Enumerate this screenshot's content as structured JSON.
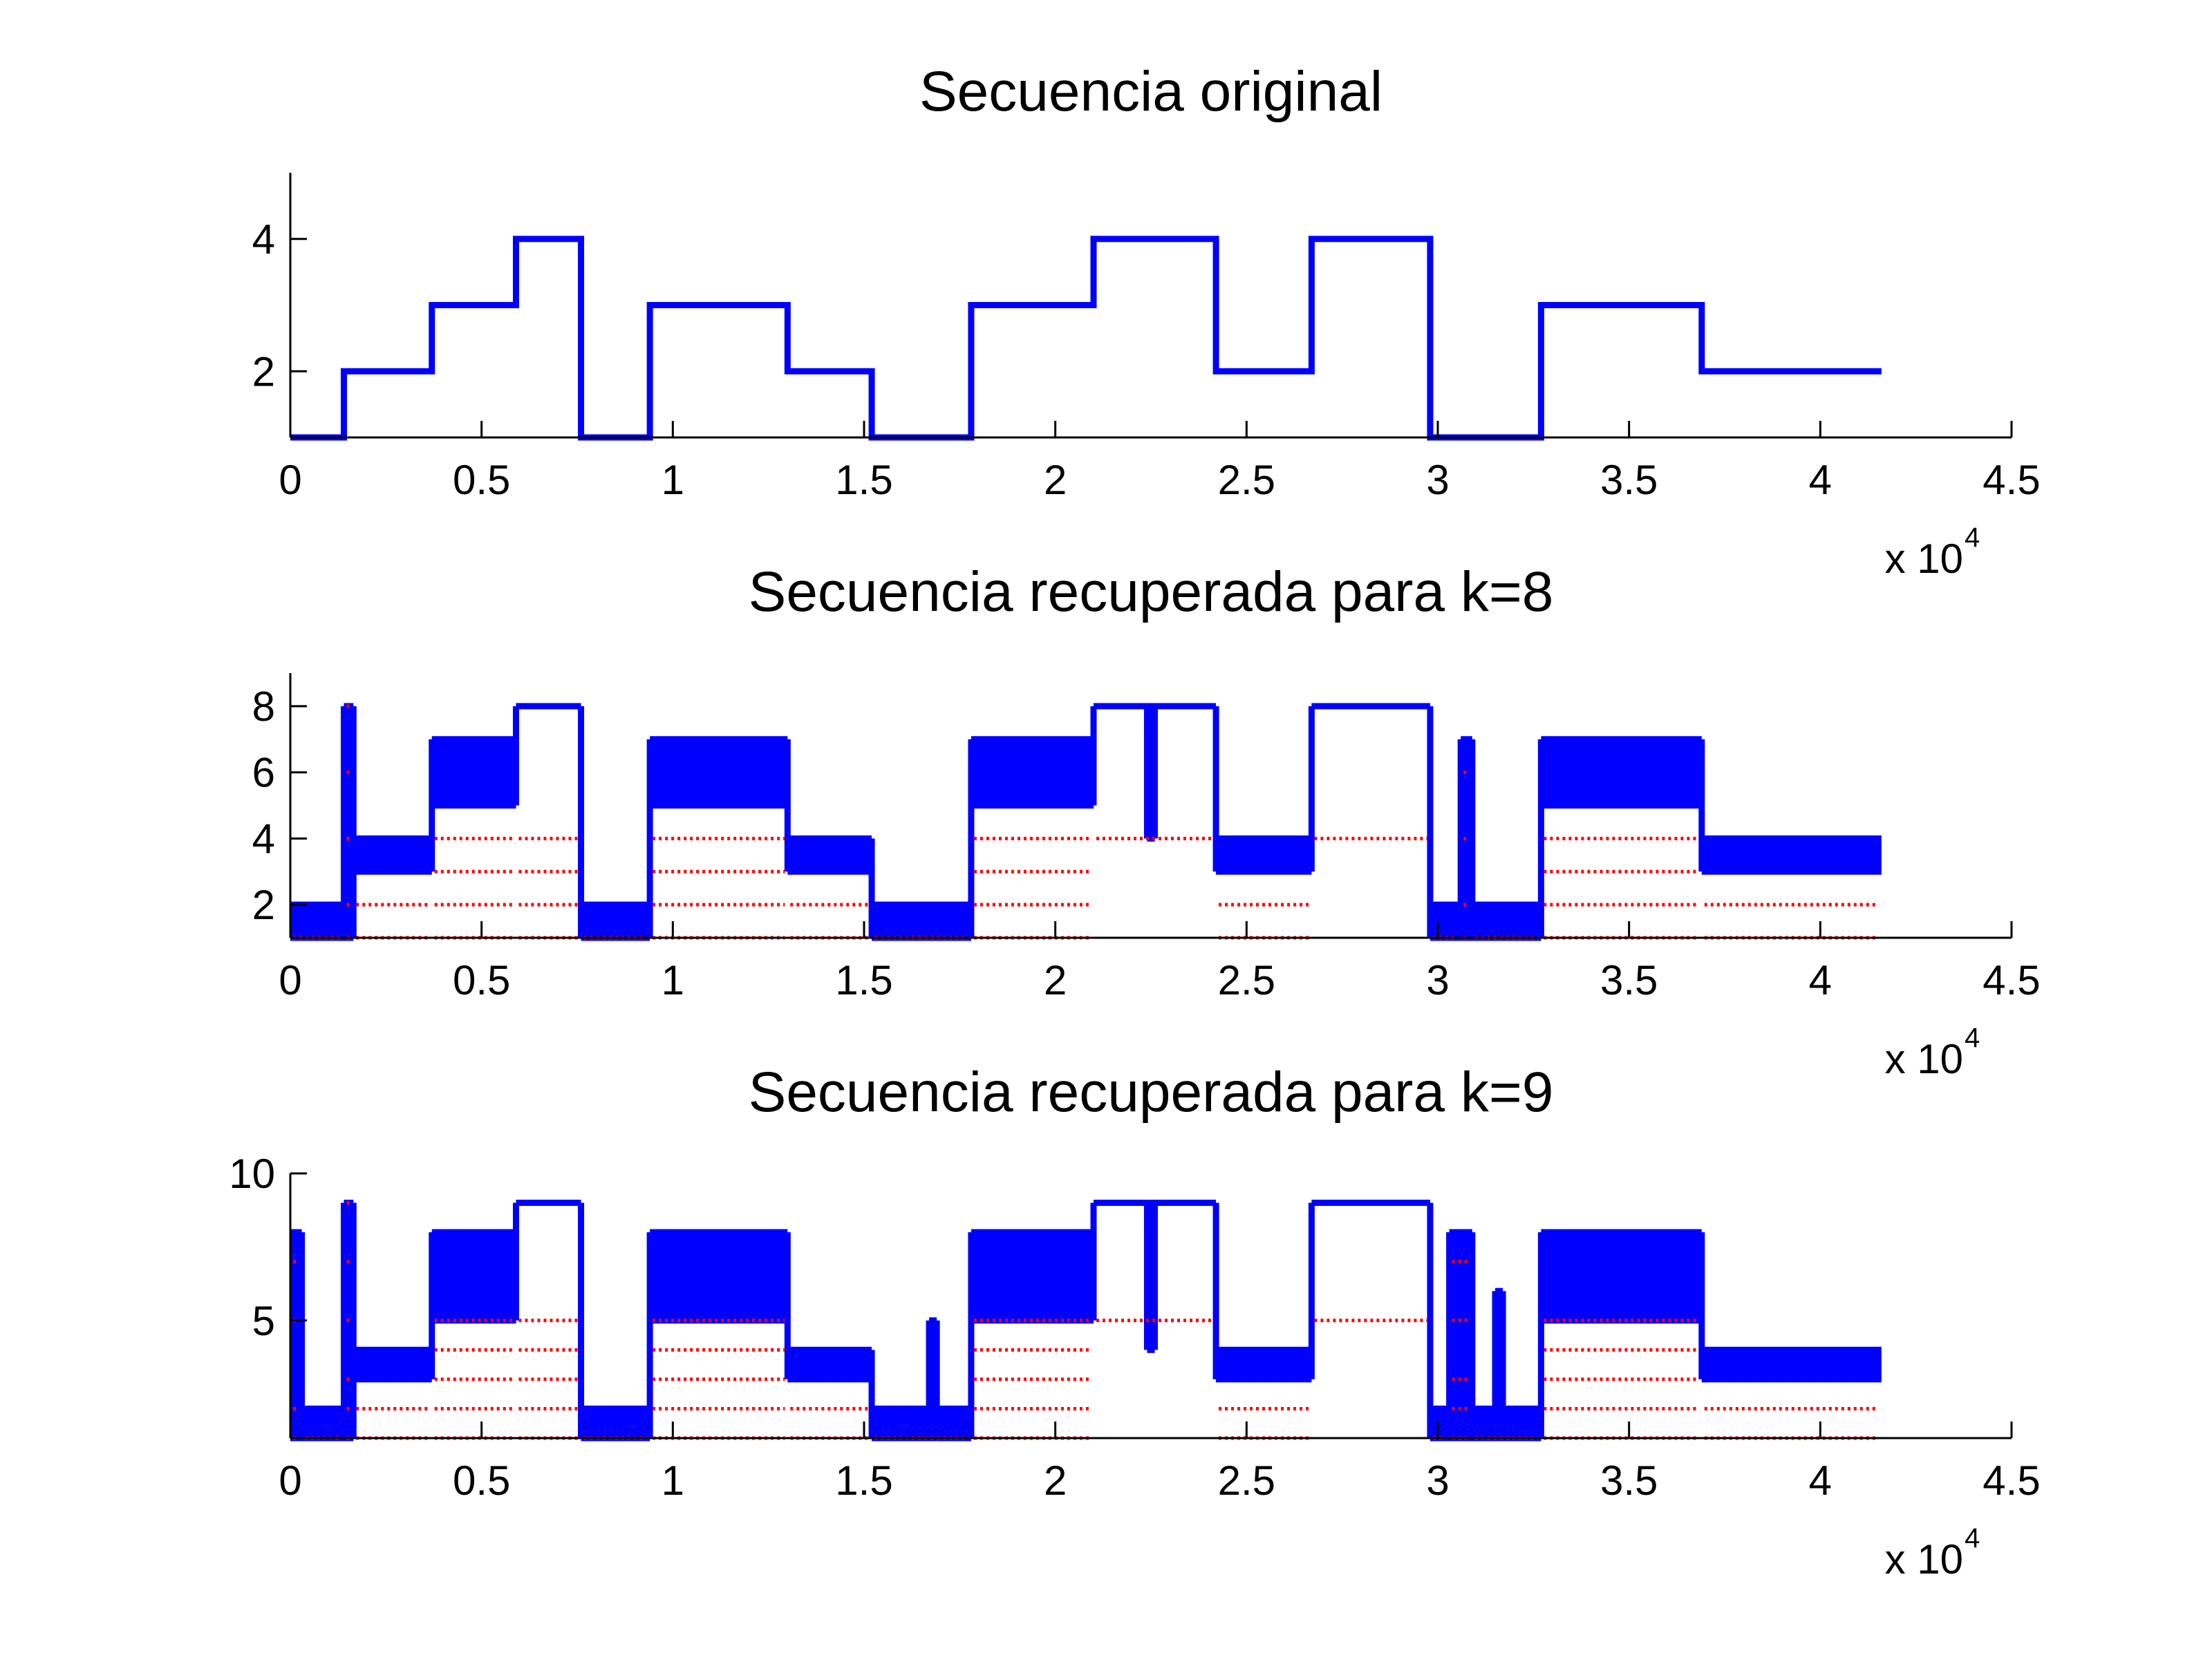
{
  "chart_data": [
    {
      "type": "line",
      "title": "Secuencia original",
      "xlabel": "",
      "ylabel": "",
      "xlim": [
        0,
        45000
      ],
      "ylim": [
        1,
        5
      ],
      "x_ticks": [
        "0",
        "0.5",
        "1",
        "1.5",
        "2",
        "2.5",
        "3",
        "3.5",
        "4",
        "4.5"
      ],
      "x_tick_values": [
        0,
        5000,
        10000,
        15000,
        20000,
        25000,
        30000,
        35000,
        40000,
        45000
      ],
      "y_ticks": [
        "2",
        "4"
      ],
      "y_tick_values": [
        2,
        4
      ],
      "x_multiplier": {
        "base": "x 10",
        "exponent": "4"
      },
      "grid": false,
      "series": [
        {
          "color": "#0000ff",
          "style": "step",
          "x": [
            0,
            1400,
            3700,
            5900,
            7600,
            9400,
            13000,
            15200,
            17800,
            21000,
            24200,
            26700,
            29800,
            32700,
            36900,
            41600
          ],
          "values": [
            1,
            2,
            3,
            4,
            1,
            3,
            2,
            1,
            3,
            4,
            2,
            4,
            1,
            3,
            2,
            2
          ]
        }
      ]
    },
    {
      "type": "line",
      "title": "Secuencia recuperada para k=8",
      "xlabel": "",
      "ylabel": "",
      "xlim": [
        0,
        45000
      ],
      "ylim": [
        1,
        9
      ],
      "x_ticks": [
        "0",
        "0.5",
        "1",
        "1.5",
        "2",
        "2.5",
        "3",
        "3.5",
        "4",
        "4.5"
      ],
      "x_tick_values": [
        0,
        5000,
        10000,
        15000,
        20000,
        25000,
        30000,
        35000,
        40000,
        45000
      ],
      "y_ticks": [
        "2",
        "4",
        "6",
        "8"
      ],
      "y_tick_values": [
        2,
        4,
        6,
        8
      ],
      "x_multiplier": {
        "base": "x 10",
        "exponent": "4"
      },
      "grid": false,
      "series": [
        {
          "color": "#0000ff",
          "style": "band",
          "segments": [
            {
              "x0": 0,
              "x1": 1400,
              "low": 1,
              "high": 2
            },
            {
              "x0": 1400,
              "x1": 1650,
              "low": 1,
              "high": 8
            },
            {
              "x0": 1650,
              "x1": 3700,
              "low": 3,
              "high": 4
            },
            {
              "x0": 3700,
              "x1": 5900,
              "low": 5,
              "high": 7
            },
            {
              "x0": 5900,
              "x1": 7600,
              "low": 8,
              "high": 8
            },
            {
              "x0": 7600,
              "x1": 9400,
              "low": 1,
              "high": 2
            },
            {
              "x0": 9400,
              "x1": 13000,
              "low": 5,
              "high": 7
            },
            {
              "x0": 13000,
              "x1": 15200,
              "low": 3,
              "high": 4
            },
            {
              "x0": 15200,
              "x1": 17800,
              "low": 1,
              "high": 2
            },
            {
              "x0": 17800,
              "x1": 21000,
              "low": 5,
              "high": 7
            },
            {
              "x0": 21000,
              "x1": 22400,
              "low": 8,
              "high": 8
            },
            {
              "x0": 22400,
              "x1": 22600,
              "low": 4,
              "high": 8
            },
            {
              "x0": 22600,
              "x1": 24200,
              "low": 8,
              "high": 8
            },
            {
              "x0": 24200,
              "x1": 26700,
              "low": 3,
              "high": 4
            },
            {
              "x0": 26700,
              "x1": 29800,
              "low": 8,
              "high": 8
            },
            {
              "x0": 29800,
              "x1": 30600,
              "low": 1,
              "high": 2
            },
            {
              "x0": 30600,
              "x1": 30900,
              "low": 1,
              "high": 7
            },
            {
              "x0": 30900,
              "x1": 32700,
              "low": 1,
              "high": 2
            },
            {
              "x0": 32700,
              "x1": 36900,
              "low": 5,
              "high": 7
            },
            {
              "x0": 36900,
              "x1": 41600,
              "low": 3,
              "high": 4
            }
          ]
        },
        {
          "color": "#ff0000",
          "style": "dots",
          "segments": [
            {
              "x0": 0,
              "x1": 1400,
              "levels": [
                1
              ]
            },
            {
              "x0": 1400,
              "x1": 1650,
              "levels": [
                1,
                2,
                4,
                6,
                8
              ]
            },
            {
              "x0": 1650,
              "x1": 3700,
              "levels": [
                1,
                2
              ]
            },
            {
              "x0": 3700,
              "x1": 5900,
              "levels": [
                1,
                2,
                3,
                4
              ]
            },
            {
              "x0": 5900,
              "x1": 7600,
              "levels": [
                1,
                2,
                3,
                4
              ]
            },
            {
              "x0": 7600,
              "x1": 9400,
              "levels": [
                1
              ]
            },
            {
              "x0": 9400,
              "x1": 13000,
              "levels": [
                1,
                2,
                3,
                4
              ]
            },
            {
              "x0": 13000,
              "x1": 15200,
              "levels": [
                1,
                2
              ]
            },
            {
              "x0": 15200,
              "x1": 17800,
              "levels": [
                1
              ]
            },
            {
              "x0": 17800,
              "x1": 21000,
              "levels": [
                1,
                2,
                3,
                4
              ]
            },
            {
              "x0": 21000,
              "x1": 24200,
              "levels": [
                4
              ]
            },
            {
              "x0": 24200,
              "x1": 26700,
              "levels": [
                1,
                2
              ]
            },
            {
              "x0": 26700,
              "x1": 29800,
              "levels": [
                4
              ]
            },
            {
              "x0": 29800,
              "x1": 30600,
              "levels": [
                1
              ]
            },
            {
              "x0": 30600,
              "x1": 30900,
              "levels": [
                1,
                2,
                4,
                6
              ]
            },
            {
              "x0": 30900,
              "x1": 32700,
              "levels": [
                1
              ]
            },
            {
              "x0": 32700,
              "x1": 36900,
              "levels": [
                1,
                2,
                3,
                4
              ]
            },
            {
              "x0": 36900,
              "x1": 41600,
              "levels": [
                1,
                2
              ]
            }
          ]
        }
      ]
    },
    {
      "type": "line",
      "title": "Secuencia recuperada para k=9",
      "xlabel": "",
      "ylabel": "",
      "xlim": [
        0,
        45000
      ],
      "ylim": [
        1,
        10
      ],
      "x_ticks": [
        "0",
        "0.5",
        "1",
        "1.5",
        "2",
        "2.5",
        "3",
        "3.5",
        "4",
        "4.5"
      ],
      "x_tick_values": [
        0,
        5000,
        10000,
        15000,
        20000,
        25000,
        30000,
        35000,
        40000,
        45000
      ],
      "y_ticks": [
        "5",
        "10"
      ],
      "y_tick_values": [
        5,
        10
      ],
      "x_multiplier": {
        "base": "x 10",
        "exponent": "4"
      },
      "grid": false,
      "series": [
        {
          "color": "#0000ff",
          "style": "band",
          "segments": [
            {
              "x0": 0,
              "x1": 300,
              "low": 1,
              "high": 8
            },
            {
              "x0": 300,
              "x1": 1400,
              "low": 1,
              "high": 2
            },
            {
              "x0": 1400,
              "x1": 1650,
              "low": 1,
              "high": 9
            },
            {
              "x0": 1650,
              "x1": 3700,
              "low": 3,
              "high": 4
            },
            {
              "x0": 3700,
              "x1": 5900,
              "low": 5,
              "high": 8
            },
            {
              "x0": 5900,
              "x1": 7600,
              "low": 9,
              "high": 9
            },
            {
              "x0": 7600,
              "x1": 9400,
              "low": 1,
              "high": 2
            },
            {
              "x0": 9400,
              "x1": 13000,
              "low": 5,
              "high": 8
            },
            {
              "x0": 13000,
              "x1": 15200,
              "low": 3,
              "high": 4
            },
            {
              "x0": 15200,
              "x1": 16700,
              "low": 1,
              "high": 2
            },
            {
              "x0": 16700,
              "x1": 16900,
              "low": 1,
              "high": 5
            },
            {
              "x0": 16900,
              "x1": 17800,
              "low": 1,
              "high": 2
            },
            {
              "x0": 17800,
              "x1": 21000,
              "low": 5,
              "high": 8
            },
            {
              "x0": 21000,
              "x1": 22400,
              "low": 9,
              "high": 9
            },
            {
              "x0": 22400,
              "x1": 22600,
              "low": 4,
              "high": 9
            },
            {
              "x0": 22600,
              "x1": 24200,
              "low": 9,
              "high": 9
            },
            {
              "x0": 24200,
              "x1": 26700,
              "low": 3,
              "high": 4
            },
            {
              "x0": 26700,
              "x1": 29800,
              "low": 9,
              "high": 9
            },
            {
              "x0": 29800,
              "x1": 30300,
              "low": 1,
              "high": 2
            },
            {
              "x0": 30300,
              "x1": 30900,
              "low": 1,
              "high": 8
            },
            {
              "x0": 30900,
              "x1": 31500,
              "low": 1,
              "high": 2
            },
            {
              "x0": 31500,
              "x1": 31700,
              "low": 1,
              "high": 6
            },
            {
              "x0": 31700,
              "x1": 32700,
              "low": 1,
              "high": 2
            },
            {
              "x0": 32700,
              "x1": 36900,
              "low": 5,
              "high": 8
            },
            {
              "x0": 36900,
              "x1": 41600,
              "low": 3,
              "high": 4
            }
          ]
        },
        {
          "color": "#ff0000",
          "style": "dots",
          "segments": [
            {
              "x0": 0,
              "x1": 300,
              "levels": [
                1,
                2,
                5,
                7
              ]
            },
            {
              "x0": 300,
              "x1": 1400,
              "levels": [
                1
              ]
            },
            {
              "x0": 1400,
              "x1": 1650,
              "levels": [
                1,
                2,
                3,
                5,
                7,
                9
              ]
            },
            {
              "x0": 1650,
              "x1": 3700,
              "levels": [
                1,
                2
              ]
            },
            {
              "x0": 3700,
              "x1": 5900,
              "levels": [
                1,
                2,
                3,
                4,
                5
              ]
            },
            {
              "x0": 5900,
              "x1": 7600,
              "levels": [
                1,
                2,
                3,
                4,
                5
              ]
            },
            {
              "x0": 7600,
              "x1": 9400,
              "levels": [
                1
              ]
            },
            {
              "x0": 9400,
              "x1": 13000,
              "levels": [
                1,
                2,
                3,
                4,
                5
              ]
            },
            {
              "x0": 13000,
              "x1": 15200,
              "levels": [
                1,
                2
              ]
            },
            {
              "x0": 15200,
              "x1": 17800,
              "levels": [
                1
              ]
            },
            {
              "x0": 17800,
              "x1": 21000,
              "levels": [
                1,
                2,
                3,
                4,
                5
              ]
            },
            {
              "x0": 21000,
              "x1": 24200,
              "levels": [
                5
              ]
            },
            {
              "x0": 24200,
              "x1": 26700,
              "levels": [
                1,
                2
              ]
            },
            {
              "x0": 26700,
              "x1": 29800,
              "levels": [
                5
              ]
            },
            {
              "x0": 29800,
              "x1": 30300,
              "levels": [
                1
              ]
            },
            {
              "x0": 30300,
              "x1": 30900,
              "levels": [
                1,
                2,
                3,
                5,
                7
              ]
            },
            {
              "x0": 30900,
              "x1": 32700,
              "levels": [
                1
              ]
            },
            {
              "x0": 32700,
              "x1": 36900,
              "levels": [
                1,
                2,
                3,
                4,
                5
              ]
            },
            {
              "x0": 36900,
              "x1": 41600,
              "levels": [
                1,
                2
              ]
            }
          ]
        }
      ]
    }
  ]
}
